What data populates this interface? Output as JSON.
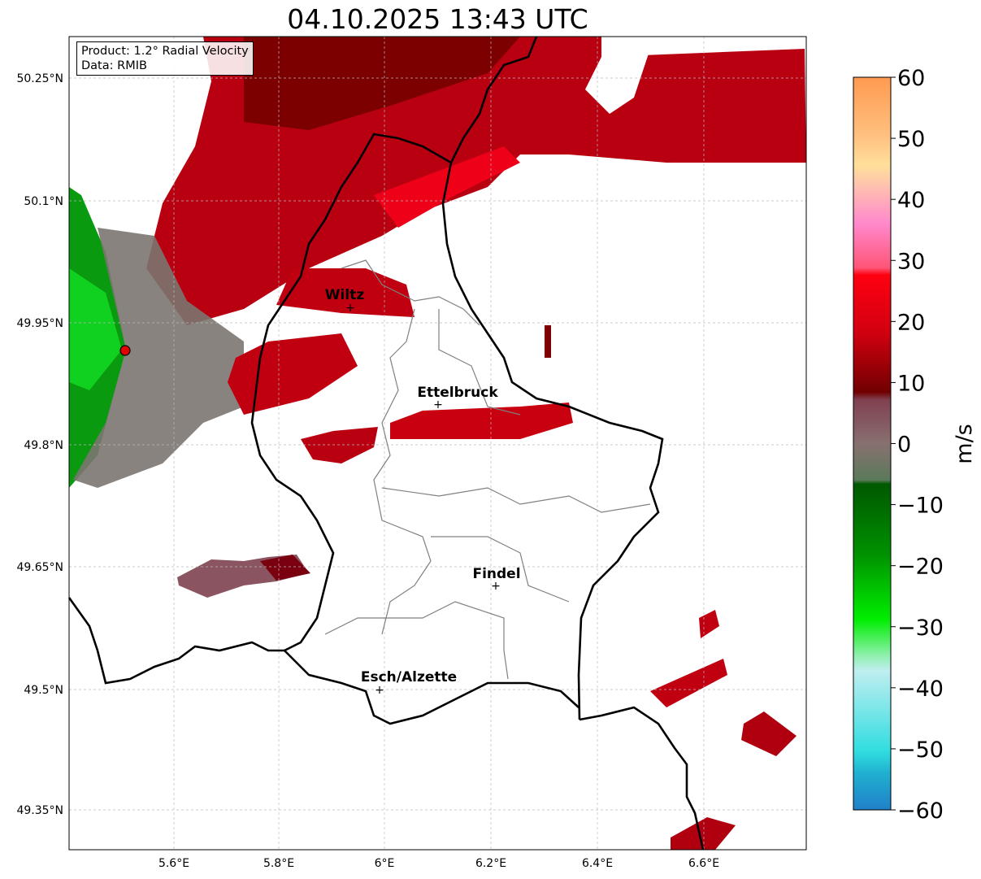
{
  "title": "04.10.2025 13:43 UTC",
  "info": {
    "product": "Product: 1.2° Radial Velocity",
    "data": "Data: RMIB"
  },
  "lat_ticks": [
    "50.25°N",
    "50.1°N",
    "49.95°N",
    "49.8°N",
    "49.65°N",
    "49.5°N",
    "49.35°N"
  ],
  "lon_ticks": [
    "5.6°E",
    "5.8°E",
    "6°E",
    "6.2°E",
    "6.4°E",
    "6.6°E"
  ],
  "cities": [
    {
      "name": "Wiltz"
    },
    {
      "name": "Ettelbruck"
    },
    {
      "name": "Findel"
    },
    {
      "name": "Esch/Alzette"
    }
  ],
  "colorbar": {
    "label": "m/s",
    "ticks": [
      "60",
      "50",
      "40",
      "30",
      "20",
      "10",
      "0",
      "−10",
      "−20",
      "−30",
      "−40",
      "−50",
      "−60"
    ],
    "range": [
      -60,
      60
    ]
  },
  "colors": {
    "inbound_green": "#00b000",
    "outbound_red": "#c80010",
    "zero_gray": "#7a7a6a"
  }
}
